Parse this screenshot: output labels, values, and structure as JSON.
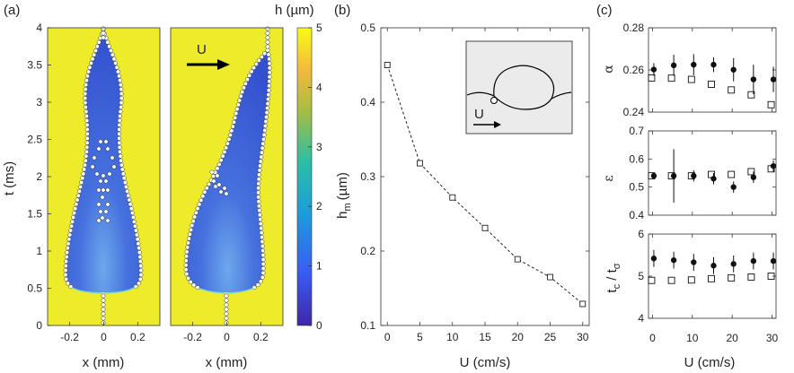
{
  "panel_a": {
    "label": "(a)",
    "colorbar_title": "h (µm)",
    "colorbar_ticks": [
      "0",
      "1",
      "2",
      "3",
      "4",
      "5"
    ],
    "ylabel": "t (ms)",
    "xlabel": "x (mm)",
    "arrow_label": "U",
    "colors": {
      "background": "#eeec2a",
      "film": "#3352d2",
      "film_light": "#5a8bdc",
      "rim": "#6ed8c8"
    },
    "chart_data": {
      "type": "heatmap",
      "quantity": "film thickness h (µm)",
      "color_range": [
        0,
        5
      ],
      "colormap": [
        "#3e26a8",
        "#3a5cf5",
        "#1c9ed9",
        "#2bbfa5",
        "#a6bd43",
        "#f4ba3b",
        "#f9fb14"
      ],
      "y_ticks": [
        "0",
        "0.5",
        "1",
        "1.5",
        "2",
        "2.5",
        "3",
        "3.5",
        "4"
      ],
      "x_ticks": [
        "-0.2",
        "0",
        "0.2"
      ],
      "ylim": [
        0,
        4
      ],
      "xlim": [
        -0.33,
        0.33
      ],
      "subplots": [
        {
          "name": "U = 0",
          "arrow": false
        },
        {
          "name": "U > 0",
          "arrow": true
        }
      ]
    }
  },
  "panel_b": {
    "label": "(b)",
    "inset_label": "U",
    "chart_data": {
      "type": "line",
      "x": [
        0,
        5,
        10,
        15,
        20,
        25,
        30
      ],
      "y": [
        0.45,
        0.318,
        0.272,
        0.231,
        0.189,
        0.165,
        0.129
      ],
      "xlabel": "U (cm/s)",
      "ylabel": "h",
      "ylabel_sub": "m",
      "ylabel_unit": "(µm)",
      "xlim": [
        -1,
        31
      ],
      "ylim": [
        0.1,
        0.5
      ],
      "x_ticks": [
        "0",
        "5",
        "10",
        "15",
        "20",
        "25",
        "30"
      ],
      "y_ticks": [
        "0.1",
        "0.2",
        "0.3",
        "0.4",
        "0.5"
      ],
      "marker": "open-square",
      "line_style": "dashed"
    }
  },
  "panel_c": {
    "label": "(c)",
    "xlabel": "U (cm/s)",
    "chart_data": [
      {
        "type": "scatter",
        "ylabel": "α",
        "ylim": [
          0.24,
          0.28
        ],
        "y_ticks": [
          "0.24",
          "0.26",
          "0.28"
        ],
        "x_ticks": [
          "0",
          "10",
          "20",
          "30"
        ],
        "xlim": [
          -1,
          31
        ],
        "series": [
          {
            "name": "filled circles",
            "x": [
              0,
              5,
              10,
              15,
              20,
              25,
              30
            ],
            "y": [
              0.2602,
              0.2622,
              0.2625,
              0.2625,
              0.2601,
              0.2555,
              0.2555
            ],
            "err": [
              0.003,
              0.005,
              0.005,
              0.0035,
              0.0055,
              0.007,
              0.006
            ]
          },
          {
            "name": "open squares",
            "x": [
              0,
              5,
              10,
              15,
              20,
              25,
              30
            ],
            "y": [
              0.2562,
              0.2561,
              0.2555,
              0.2532,
              0.2505,
              0.2482,
              0.2435
            ]
          }
        ]
      },
      {
        "type": "scatter",
        "ylabel": "ε",
        "ylim": [
          0.4,
          0.7
        ],
        "y_ticks": [
          "0.4",
          "0.5",
          "0.6",
          "0.7"
        ],
        "x_ticks": [
          "0",
          "10",
          "20",
          "30"
        ],
        "xlim": [
          -1,
          31
        ],
        "series": [
          {
            "name": "filled circles",
            "x": [
              0,
              5,
              10,
              15,
              20,
              25,
              30
            ],
            "y": [
              0.54,
              0.54,
              0.54,
              0.53,
              0.5,
              0.535,
              0.575
            ],
            "err": [
              0,
              0.095,
              0.02,
              0.02,
              0.02,
              0.02,
              0.02
            ]
          },
          {
            "name": "open squares",
            "x": [
              0,
              5,
              10,
              15,
              20,
              25,
              30
            ],
            "y": [
              0.54,
              0.54,
              0.54,
              0.545,
              0.545,
              0.555,
              0.565
            ]
          }
        ]
      },
      {
        "type": "scatter",
        "ylabel": "t",
        "ylabel_sub": "c",
        "ylabel_mid": " / t",
        "ylabel_sub2": "σ",
        "ylim": [
          4,
          6
        ],
        "y_ticks": [
          "4",
          "5",
          "6"
        ],
        "x_ticks": [
          "0",
          "10",
          "20",
          "30"
        ],
        "xlim": [
          -1,
          31
        ],
        "series": [
          {
            "name": "filled circles",
            "x": [
              0,
              5,
              10,
              15,
              20,
              25,
              30
            ],
            "y": [
              5.42,
              5.38,
              5.33,
              5.25,
              5.29,
              5.36,
              5.36
            ],
            "err": [
              0.2,
              0.2,
              0.2,
              0.2,
              0.2,
              0.2,
              0.2
            ]
          },
          {
            "name": "open squares",
            "x": [
              0,
              5,
              10,
              15,
              20,
              25,
              30
            ],
            "y": [
              4.9,
              4.9,
              4.91,
              4.94,
              4.96,
              4.98,
              5.0
            ]
          }
        ]
      }
    ]
  }
}
